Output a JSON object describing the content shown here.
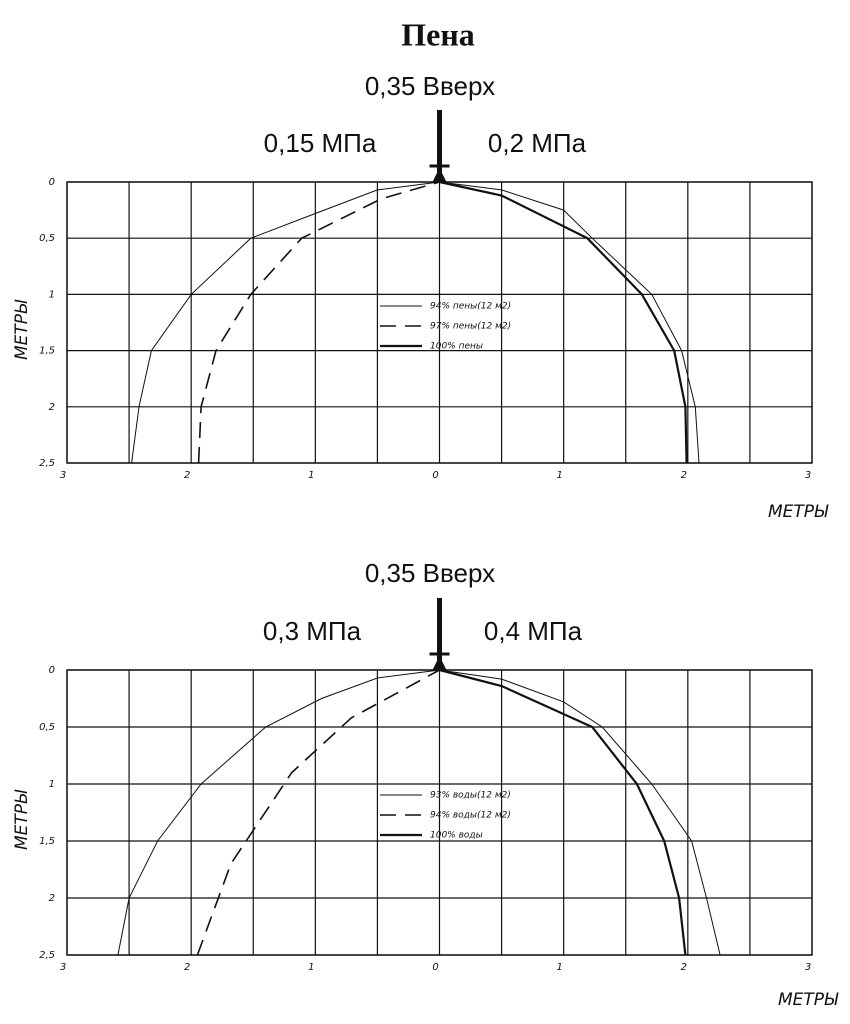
{
  "title": "Пена",
  "chart_data": [
    {
      "type": "line",
      "annotations": [
        "0,35 Вверх",
        "0,15 МПа",
        "0,2 МПа"
      ],
      "xlabel": "МЕТРЫ",
      "ylabel": "МЕТРЫ",
      "xlim": [
        -3,
        3
      ],
      "ylim": [
        0,
        2.5
      ],
      "y_inverted": true,
      "grid": true,
      "xticks": [
        {
          "value": -3,
          "label": "3"
        },
        {
          "value": -2,
          "label": "2"
        },
        {
          "value": -1,
          "label": "1"
        },
        0,
        1,
        2,
        3
      ],
      "x_minor_ticks": [
        -2.5,
        -1.5,
        -0.5,
        0.5,
        1.5,
        2.5
      ],
      "yticks": [
        0,
        {
          "value": 0.5,
          "label": "0,5"
        },
        1,
        {
          "value": 1.5,
          "label": "1,5"
        },
        2,
        {
          "value": 2.5,
          "label": "2,5"
        }
      ],
      "series": [
        {
          "name": "94% пены(12 м2)",
          "color": "#111111",
          "style": "thin",
          "x": [
            -2.48,
            -2.42,
            -2.32,
            -2.0,
            -1.52,
            -1.0,
            -0.5,
            0,
            0.5,
            1.0,
            1.23,
            1.71,
            1.95,
            2.06,
            2.09
          ],
          "values": [
            2.5,
            2,
            1.5,
            1,
            0.5,
            0.28,
            0.07,
            0,
            0.07,
            0.25,
            0.5,
            1,
            1.5,
            2,
            2.5
          ]
        },
        {
          "name": "97% пены(12 м2)",
          "color": "#111111",
          "style": "dashed",
          "x": [
            -1.94,
            -1.92,
            -1.8,
            -1.52,
            -1.11,
            -0.47,
            0
          ],
          "values": [
            2.5,
            2,
            1.5,
            1,
            0.5,
            0.15,
            0
          ]
        },
        {
          "name": "100% пены",
          "color": "#111111",
          "style": "thick",
          "x": [
            0,
            0.5,
            1.19,
            1.63,
            1.89,
            1.98,
            1.99
          ],
          "values": [
            0,
            0.12,
            0.5,
            1,
            1.5,
            2,
            2.5
          ]
        }
      ]
    },
    {
      "type": "line",
      "annotations": [
        "0,35 Вверх",
        "0,3 МПа",
        "0,4 МПа"
      ],
      "xlabel": "МЕТРЫ",
      "ylabel": "МЕТРЫ",
      "xlim": [
        -3,
        3
      ],
      "ylim": [
        0,
        2.5
      ],
      "y_inverted": true,
      "grid": true,
      "xticks": [
        {
          "value": -3,
          "label": "3"
        },
        {
          "value": -2,
          "label": "2"
        },
        {
          "value": -1,
          "label": "1"
        },
        0,
        1,
        2,
        3
      ],
      "x_minor_ticks": [
        -2.5,
        -1.5,
        -0.5,
        0.5,
        1.5,
        2.5
      ],
      "yticks": [
        0,
        {
          "value": 0.5,
          "label": "0,5"
        },
        1,
        {
          "value": 1.5,
          "label": "1,5"
        },
        2,
        {
          "value": 2.5,
          "label": "2,5"
        }
      ],
      "series": [
        {
          "name": "93% воды(12 м2)",
          "color": "#111111",
          "style": "thin",
          "x": [
            -2.59,
            -2.5,
            -2.27,
            -1.92,
            -1.4,
            -0.95,
            -0.5,
            0,
            0.5,
            1.0,
            1.31,
            1.71,
            2.03,
            2.15,
            2.26
          ],
          "values": [
            2.5,
            2,
            1.5,
            1,
            0.5,
            0.25,
            0.07,
            0,
            0.08,
            0.28,
            0.5,
            1,
            1.5,
            2,
            2.5
          ]
        },
        {
          "name": "94% воды(12 м2)",
          "color": "#111111",
          "style": "dashed",
          "x": [
            -1.95,
            -1.68,
            -1.19,
            -0.71,
            0
          ],
          "values": [
            2.5,
            1.7,
            0.9,
            0.42,
            0
          ]
        },
        {
          "name": "100% воды",
          "color": "#111111",
          "style": "thick",
          "x": [
            0,
            0.5,
            1.23,
            1.59,
            1.81,
            1.93,
            1.98
          ],
          "values": [
            0,
            0.14,
            0.5,
            1,
            1.5,
            2,
            2.5
          ]
        }
      ]
    }
  ]
}
